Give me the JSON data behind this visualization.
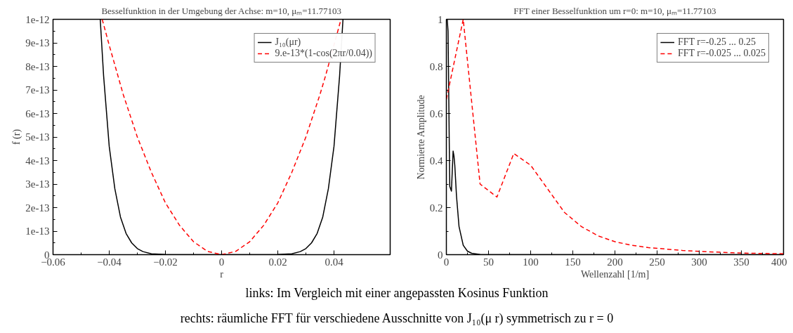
{
  "chart_data": [
    {
      "type": "line",
      "title": "Besselfunktion in der Umgebung der Achse: m=10, μₘ=11.77103",
      "xlabel": "r",
      "ylabel": "f (r)",
      "xlim": [
        -0.06,
        0.06
      ],
      "xticks": [
        -0.06,
        -0.04,
        -0.02,
        0,
        0.02,
        0.04
      ],
      "ylim": [
        0,
        1e-12
      ],
      "yticks": [
        {
          "value": 0,
          "label": "0"
        },
        {
          "value": 1e-13,
          "label": "1e-13"
        },
        {
          "value": 2e-13,
          "label": "2e-13"
        },
        {
          "value": 3e-13,
          "label": "3e-13"
        },
        {
          "value": 4e-13,
          "label": "4e-13"
        },
        {
          "value": 5e-13,
          "label": "5e-13"
        },
        {
          "value": 6e-13,
          "label": "6e-13"
        },
        {
          "value": 7e-13,
          "label": "7e-13"
        },
        {
          "value": 8e-13,
          "label": "8e-13"
        },
        {
          "value": 9e-13,
          "label": "9e-13"
        },
        {
          "value": 1e-12,
          "label": "1e-12"
        }
      ],
      "grid": false,
      "legend": "top right",
      "marker": "none",
      "series": [
        {
          "name": "J₁₀(μr)",
          "color": "#000000",
          "line_style": "solid",
          "x": [
            -0.0432,
            -0.042,
            -0.04,
            -0.038,
            -0.036,
            -0.034,
            -0.032,
            -0.03,
            -0.028,
            -0.025,
            -0.02,
            -0.01,
            0,
            0.01,
            0.02,
            0.025,
            0.028,
            0.03,
            0.032,
            0.034,
            0.036,
            0.038,
            0.04,
            0.042,
            0.0432
          ],
          "values": [
            1e-12,
            7.6e-13,
            4.6e-13,
            2.8e-13,
            1.6e-13,
            9e-14,
            5e-14,
            2.6e-14,
            1.3e-14,
            4e-15,
            5e-16,
            0,
            0,
            0,
            5e-16,
            4e-15,
            1.3e-14,
            2.6e-14,
            5e-14,
            9e-14,
            1.6e-13,
            2.8e-13,
            4.6e-13,
            7.6e-13,
            1e-12
          ]
        },
        {
          "name": "9.e-13*(1-cos(2πr/0.04))",
          "color": "#ff0000",
          "line_style": "dashed",
          "x": [
            -0.0425,
            -0.04,
            -0.035,
            -0.03,
            -0.025,
            -0.02,
            -0.015,
            -0.01,
            -0.005,
            0,
            0.005,
            0.01,
            0.015,
            0.02,
            0.025,
            0.03,
            0.035,
            0.037,
            0.0425
          ],
          "values": [
            1e-12,
            8.9e-13,
            6.8e-13,
            5e-13,
            3.5e-13,
            2.2e-13,
            1.25e-13,
            5.5e-14,
            1.4e-14,
            0,
            1.4e-14,
            5.5e-14,
            1.25e-13,
            2.2e-13,
            3.5e-13,
            5e-13,
            6.8e-13,
            7.6e-13,
            1e-12
          ]
        }
      ],
      "annotations": [
        "links: Im Vergleich mit einer angepassten Kosinus Funktion"
      ]
    },
    {
      "type": "line",
      "title": "FFT einer Besselfunktion um r=0: m=10, μₘ=11.77103",
      "xlabel": "Wellenzahl [1/m]",
      "ylabel": "Normierte Amplitude",
      "xlim": [
        0,
        400
      ],
      "xticks": [
        0,
        50,
        100,
        150,
        200,
        250,
        300,
        350,
        400
      ],
      "ylim": [
        0,
        1
      ],
      "yticks": [
        0,
        0.2,
        0.4,
        0.6,
        0.8,
        1
      ],
      "grid": false,
      "legend": "top right",
      "marker": "none",
      "series": [
        {
          "name": "FFT r=-0.25 ... 0.25",
          "color": "#000000",
          "line_style": "solid",
          "x": [
            1,
            2,
            4,
            6,
            8,
            9,
            10,
            12,
            15,
            20,
            25,
            30,
            40,
            60,
            100,
            200,
            400
          ],
          "values": [
            1.0,
            0.95,
            0.29,
            0.27,
            0.44,
            0.42,
            0.38,
            0.25,
            0.12,
            0.04,
            0.015,
            0.006,
            0.001,
            0,
            0,
            0,
            0
          ]
        },
        {
          "name": "FFT r=-0.025 ... 0.025",
          "color": "#ff0000",
          "line_style": "dashed",
          "x": [
            0,
            20,
            40,
            60,
            80,
            100,
            120,
            140,
            160,
            180,
            200,
            220,
            240,
            260,
            280,
            300,
            320,
            340,
            360,
            380,
            400
          ],
          "values": [
            0.66,
            1.0,
            0.3,
            0.245,
            0.43,
            0.38,
            0.28,
            0.18,
            0.12,
            0.08,
            0.055,
            0.04,
            0.03,
            0.024,
            0.018,
            0.014,
            0.011,
            0.008,
            0.006,
            0.005,
            0.004
          ]
        }
      ],
      "annotations": [
        "rechts: räumliche FFT für verschiedene Ausschnitte von J₁₀(μ r) symmetrisch zu r = 0"
      ]
    }
  ]
}
